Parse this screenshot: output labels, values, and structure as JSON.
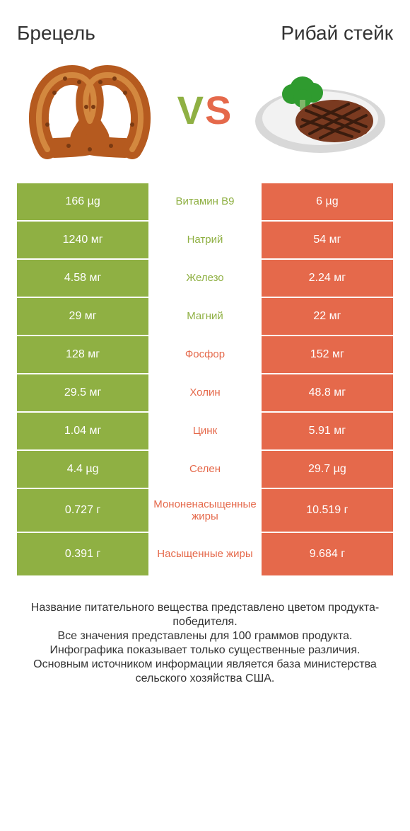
{
  "colors": {
    "left": "#8fb043",
    "right": "#e5694b",
    "background": "#ffffff",
    "text": "#333333",
    "pretzel": "#b55a1f",
    "pretzel_dark": "#7a3a12",
    "steak": "#7a3a20",
    "steak_grill": "#3a1c0e",
    "broccoli": "#2f9b2f",
    "plate": "#f2f2f2",
    "plate_rim": "#d8d8d8"
  },
  "titles": {
    "left": "Брецель",
    "right": "Рибай стейк"
  },
  "vs_label": "VS",
  "rows": [
    {
      "label": "Витамин B9",
      "left": "166 µg",
      "right": "6 µg",
      "winner": "left",
      "tall": false
    },
    {
      "label": "Натрий",
      "left": "1240 мг",
      "right": "54 мг",
      "winner": "left",
      "tall": false
    },
    {
      "label": "Железо",
      "left": "4.58 мг",
      "right": "2.24 мг",
      "winner": "left",
      "tall": false
    },
    {
      "label": "Магний",
      "left": "29 мг",
      "right": "22 мг",
      "winner": "left",
      "tall": false
    },
    {
      "label": "Фосфор",
      "left": "128 мг",
      "right": "152 мг",
      "winner": "right",
      "tall": false
    },
    {
      "label": "Холин",
      "left": "29.5 мг",
      "right": "48.8 мг",
      "winner": "right",
      "tall": false
    },
    {
      "label": "Цинк",
      "left": "1.04 мг",
      "right": "5.91 мг",
      "winner": "right",
      "tall": false
    },
    {
      "label": "Селен",
      "left": "4.4 µg",
      "right": "29.7 µg",
      "winner": "right",
      "tall": false
    },
    {
      "label": "Мононенасыщенные жиры",
      "left": "0.727 г",
      "right": "10.519 г",
      "winner": "right",
      "tall": true
    },
    {
      "label": "Насыщенные жиры",
      "left": "0.391 г",
      "right": "9.684 г",
      "winner": "right",
      "tall": true
    }
  ],
  "footer_lines": [
    "Название питательного вещества представлено цветом продукта-победителя.",
    "Все значения представлены для 100 граммов продукта.",
    "Инфографика показывает только существенные различия.",
    "Основным источником информации является база министерства сельского хозяйства США."
  ]
}
